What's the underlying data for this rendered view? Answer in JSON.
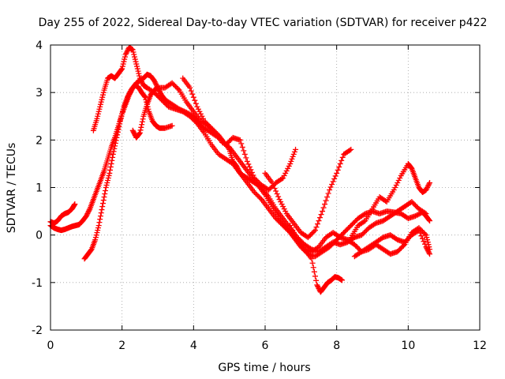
{
  "chart_data": {
    "type": "scatter",
    "title": "Day 255 of 2022, Sidereal Day-to-day VTEC variation (SDTVAR) for receiver p422",
    "xlabel": "GPS time / hours",
    "ylabel": "SDTVAR / TECUs",
    "xlim": [
      0,
      12
    ],
    "ylim": [
      -2,
      4
    ],
    "xticks": [
      "0",
      "2",
      "4",
      "6",
      "8",
      "10",
      "12"
    ],
    "yticks": [
      "-2",
      "-1",
      "0",
      "1",
      "2",
      "3",
      "4"
    ],
    "grid": true,
    "marker": "+",
    "color": "#ff0000",
    "series": [
      {
        "points": [
          [
            0.0,
            0.28
          ],
          [
            0.1,
            0.25
          ],
          [
            0.2,
            0.3
          ],
          [
            0.3,
            0.4
          ],
          [
            0.4,
            0.45
          ],
          [
            0.5,
            0.48
          ],
          [
            0.6,
            0.55
          ],
          [
            0.68,
            0.65
          ]
        ]
      },
      {
        "points": [
          [
            0.0,
            0.2
          ],
          [
            0.1,
            0.15
          ],
          [
            0.2,
            0.12
          ],
          [
            0.3,
            0.1
          ],
          [
            0.4,
            0.12
          ],
          [
            0.5,
            0.15
          ],
          [
            0.6,
            0.18
          ],
          [
            0.7,
            0.2
          ],
          [
            0.8,
            0.22
          ],
          [
            0.9,
            0.3
          ],
          [
            1.0,
            0.4
          ],
          [
            1.1,
            0.55
          ],
          [
            1.2,
            0.75
          ],
          [
            1.3,
            0.95
          ],
          [
            1.4,
            1.15
          ],
          [
            1.5,
            1.35
          ],
          [
            1.6,
            1.6
          ],
          [
            1.7,
            1.85
          ],
          [
            1.8,
            2.05
          ],
          [
            1.9,
            2.3
          ],
          [
            2.0,
            2.55
          ],
          [
            2.1,
            2.75
          ],
          [
            2.2,
            2.95
          ],
          [
            2.3,
            3.1
          ],
          [
            2.4,
            3.2
          ],
          [
            2.5,
            3.25
          ],
          [
            2.6,
            3.3
          ],
          [
            2.7,
            3.38
          ],
          [
            2.8,
            3.35
          ],
          [
            2.9,
            3.25
          ],
          [
            3.0,
            3.1
          ],
          [
            3.1,
            2.95
          ],
          [
            3.2,
            2.85
          ],
          [
            3.4,
            2.75
          ],
          [
            3.6,
            2.65
          ],
          [
            3.8,
            2.58
          ],
          [
            4.0,
            2.5
          ],
          [
            4.1,
            2.4
          ],
          [
            4.2,
            2.3
          ],
          [
            4.4,
            2.2
          ],
          [
            4.6,
            2.1
          ],
          [
            4.8,
            2.0
          ],
          [
            5.0,
            1.8
          ],
          [
            5.1,
            1.55
          ],
          [
            5.2,
            1.45
          ],
          [
            5.3,
            1.3
          ],
          [
            5.5,
            1.1
          ],
          [
            5.7,
            0.9
          ],
          [
            5.9,
            0.75
          ],
          [
            6.1,
            0.55
          ],
          [
            6.3,
            0.35
          ],
          [
            6.5,
            0.2
          ],
          [
            6.7,
            0.05
          ],
          [
            6.9,
            -0.1
          ],
          [
            7.1,
            -0.3
          ],
          [
            7.3,
            -0.5
          ],
          [
            7.45,
            -1.05
          ],
          [
            7.55,
            -1.2
          ],
          [
            7.65,
            -1.1
          ],
          [
            7.75,
            -1.0
          ],
          [
            7.85,
            -0.95
          ],
          [
            7.95,
            -0.88
          ],
          [
            8.05,
            -0.9
          ],
          [
            8.15,
            -0.95
          ]
        ]
      },
      {
        "points": [
          [
            0.95,
            -0.5
          ],
          [
            1.05,
            -0.4
          ],
          [
            1.15,
            -0.3
          ],
          [
            1.25,
            -0.1
          ],
          [
            1.35,
            0.2
          ],
          [
            1.45,
            0.6
          ],
          [
            1.55,
            1.0
          ],
          [
            1.65,
            1.3
          ],
          [
            1.75,
            1.7
          ],
          [
            1.85,
            2.05
          ],
          [
            1.95,
            2.4
          ],
          [
            2.05,
            2.7
          ],
          [
            2.15,
            2.9
          ],
          [
            2.25,
            3.05
          ],
          [
            2.35,
            3.15
          ],
          [
            2.45,
            3.12
          ],
          [
            2.55,
            3.0
          ],
          [
            2.65,
            2.9
          ],
          [
            2.75,
            2.6
          ],
          [
            2.85,
            2.4
          ],
          [
            2.95,
            2.3
          ],
          [
            3.05,
            2.25
          ],
          [
            3.2,
            2.25
          ],
          [
            3.4,
            2.3
          ]
        ]
      },
      {
        "points": [
          [
            2.3,
            2.2
          ],
          [
            2.4,
            2.05
          ],
          [
            2.5,
            2.15
          ],
          [
            2.6,
            2.5
          ],
          [
            2.7,
            2.75
          ],
          [
            2.8,
            2.95
          ],
          [
            2.9,
            3.05
          ],
          [
            3.0,
            3.1
          ],
          [
            3.2,
            3.1
          ],
          [
            3.4,
            3.2
          ],
          [
            3.6,
            3.05
          ],
          [
            3.8,
            2.8
          ],
          [
            4.0,
            2.6
          ],
          [
            4.2,
            2.4
          ],
          [
            4.4,
            2.3
          ],
          [
            4.6,
            2.15
          ],
          [
            4.8,
            1.95
          ],
          [
            5.0,
            1.85
          ],
          [
            5.2,
            1.65
          ],
          [
            5.4,
            1.45
          ],
          [
            5.6,
            1.25
          ],
          [
            5.8,
            1.05
          ],
          [
            6.0,
            0.85
          ],
          [
            6.2,
            0.6
          ],
          [
            6.4,
            0.35
          ],
          [
            6.6,
            0.15
          ],
          [
            6.8,
            -0.05
          ],
          [
            7.0,
            -0.25
          ],
          [
            7.2,
            -0.4
          ],
          [
            7.4,
            -0.45
          ],
          [
            7.6,
            -0.35
          ],
          [
            7.8,
            -0.25
          ],
          [
            8.0,
            -0.1
          ],
          [
            8.2,
            0.05
          ],
          [
            8.4,
            0.2
          ],
          [
            8.6,
            0.35
          ],
          [
            8.8,
            0.45
          ],
          [
            9.0,
            0.5
          ],
          [
            9.2,
            0.45
          ],
          [
            9.4,
            0.5
          ],
          [
            9.6,
            0.48
          ],
          [
            9.8,
            0.45
          ],
          [
            10.0,
            0.35
          ],
          [
            10.2,
            0.4
          ],
          [
            10.4,
            0.48
          ],
          [
            10.5,
            0.4
          ],
          [
            10.6,
            0.3
          ]
        ]
      },
      {
        "points": [
          [
            1.2,
            2.2
          ],
          [
            1.3,
            2.45
          ],
          [
            1.4,
            2.75
          ],
          [
            1.5,
            3.05
          ],
          [
            1.6,
            3.3
          ],
          [
            1.7,
            3.35
          ],
          [
            1.8,
            3.3
          ],
          [
            1.9,
            3.4
          ],
          [
            2.0,
            3.5
          ],
          [
            2.1,
            3.8
          ],
          [
            2.2,
            3.95
          ],
          [
            2.3,
            3.9
          ],
          [
            2.4,
            3.6
          ],
          [
            2.5,
            3.3
          ],
          [
            2.6,
            3.15
          ],
          [
            2.7,
            3.1
          ],
          [
            2.9,
            3.0
          ],
          [
            3.1,
            2.85
          ],
          [
            3.3,
            2.7
          ],
          [
            3.5,
            2.65
          ],
          [
            3.7,
            2.6
          ],
          [
            3.9,
            2.5
          ],
          [
            4.1,
            2.35
          ],
          [
            4.3,
            2.15
          ],
          [
            4.5,
            1.9
          ],
          [
            4.7,
            1.7
          ],
          [
            4.9,
            1.6
          ],
          [
            5.1,
            1.5
          ],
          [
            5.3,
            1.3
          ],
          [
            5.5,
            1.2
          ],
          [
            5.7,
            1.1
          ],
          [
            5.9,
            1.0
          ],
          [
            6.1,
            0.8
          ],
          [
            6.3,
            0.55
          ],
          [
            6.5,
            0.35
          ],
          [
            6.7,
            0.15
          ],
          [
            6.9,
            -0.05
          ],
          [
            7.1,
            -0.2
          ],
          [
            7.3,
            -0.3
          ],
          [
            7.5,
            -0.35
          ],
          [
            7.7,
            -0.25
          ],
          [
            7.9,
            -0.15
          ],
          [
            8.1,
            -0.2
          ],
          [
            8.3,
            -0.15
          ],
          [
            8.5,
            -0.05
          ],
          [
            8.7,
            0.0
          ],
          [
            8.9,
            0.15
          ],
          [
            9.1,
            0.25
          ],
          [
            9.3,
            0.3
          ],
          [
            9.5,
            0.4
          ],
          [
            9.7,
            0.5
          ],
          [
            9.9,
            0.6
          ],
          [
            10.1,
            0.7
          ],
          [
            10.3,
            0.55
          ],
          [
            10.5,
            0.45
          ]
        ]
      },
      {
        "points": [
          [
            3.7,
            3.3
          ],
          [
            3.9,
            3.1
          ],
          [
            4.1,
            2.7
          ],
          [
            4.3,
            2.4
          ],
          [
            4.5,
            2.25
          ],
          [
            4.7,
            2.1
          ],
          [
            4.9,
            1.9
          ],
          [
            5.1,
            2.05
          ],
          [
            5.3,
            2.0
          ],
          [
            5.5,
            1.55
          ],
          [
            5.7,
            1.2
          ],
          [
            5.9,
            1.05
          ],
          [
            6.1,
            0.95
          ],
          [
            6.3,
            1.1
          ],
          [
            6.5,
            1.2
          ],
          [
            6.7,
            1.5
          ],
          [
            6.85,
            1.8
          ]
        ]
      },
      {
        "points": [
          [
            6.0,
            1.3
          ],
          [
            6.2,
            1.1
          ],
          [
            6.4,
            0.75
          ],
          [
            6.6,
            0.45
          ],
          [
            6.8,
            0.25
          ],
          [
            7.0,
            0.05
          ],
          [
            7.2,
            -0.05
          ],
          [
            7.4,
            0.1
          ],
          [
            7.6,
            0.5
          ],
          [
            7.8,
            0.95
          ],
          [
            8.0,
            1.3
          ],
          [
            8.2,
            1.7
          ],
          [
            8.4,
            1.8
          ]
        ]
      },
      {
        "points": [
          [
            6.7,
            0.2
          ],
          [
            6.9,
            -0.1
          ],
          [
            7.1,
            -0.3
          ],
          [
            7.3,
            -0.35
          ],
          [
            7.5,
            -0.25
          ],
          [
            7.7,
            -0.05
          ],
          [
            7.9,
            0.05
          ],
          [
            8.1,
            -0.05
          ],
          [
            8.3,
            -0.1
          ],
          [
            8.5,
            -0.2
          ],
          [
            8.7,
            -0.35
          ],
          [
            8.9,
            -0.25
          ],
          [
            9.1,
            -0.15
          ],
          [
            9.3,
            -0.05
          ],
          [
            9.5,
            0.0
          ],
          [
            9.7,
            -0.1
          ],
          [
            9.9,
            -0.15
          ],
          [
            10.1,
            0.0
          ],
          [
            10.3,
            0.1
          ],
          [
            10.5,
            -0.25
          ],
          [
            10.6,
            -0.4
          ]
        ]
      },
      {
        "points": [
          [
            8.5,
            -0.45
          ],
          [
            8.7,
            -0.35
          ],
          [
            8.9,
            -0.3
          ],
          [
            9.1,
            -0.2
          ],
          [
            9.3,
            -0.3
          ],
          [
            9.5,
            -0.4
          ],
          [
            9.7,
            -0.35
          ],
          [
            9.9,
            -0.2
          ],
          [
            10.1,
            0.05
          ],
          [
            10.3,
            0.15
          ],
          [
            10.5,
            0.0
          ],
          [
            10.6,
            -0.3
          ]
        ]
      },
      {
        "points": [
          [
            8.4,
            -0.05
          ],
          [
            8.6,
            0.2
          ],
          [
            8.8,
            0.3
          ],
          [
            9.0,
            0.55
          ],
          [
            9.2,
            0.8
          ],
          [
            9.4,
            0.7
          ],
          [
            9.6,
            0.95
          ],
          [
            9.8,
            1.25
          ],
          [
            10.0,
            1.5
          ],
          [
            10.1,
            1.4
          ],
          [
            10.2,
            1.2
          ],
          [
            10.3,
            1.0
          ],
          [
            10.4,
            0.9
          ],
          [
            10.5,
            0.95
          ],
          [
            10.6,
            1.1
          ]
        ]
      }
    ]
  }
}
